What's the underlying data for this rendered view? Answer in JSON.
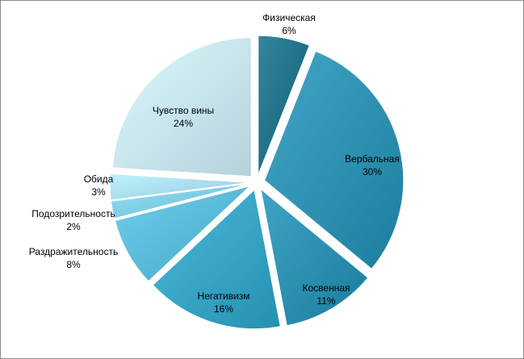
{
  "chart_data": {
    "type": "pie",
    "title": "",
    "slices": [
      {
        "name": "Физическая",
        "value": 6,
        "label": "6%",
        "color": "#1f6f86"
      },
      {
        "name": "Вербальная",
        "value": 30,
        "label": "30%",
        "color": "#2e90b0"
      },
      {
        "name": "Косвенная",
        "value": 11,
        "label": "11%",
        "color": "#2b8eae"
      },
      {
        "name": "Негативизм",
        "value": 16,
        "label": "16%",
        "color": "#36a2c4"
      },
      {
        "name": "Раздражительность",
        "value": 8,
        "label": "8%",
        "color": "#58b9d6"
      },
      {
        "name": "Подозрительность",
        "value": 2,
        "label": "2%",
        "color": "#7ccbe2"
      },
      {
        "name": "Обида",
        "value": 3,
        "label": "3%",
        "color": "#a8dceb"
      },
      {
        "name": "Чувство вины",
        "value": 24,
        "label": "24%",
        "color": "#c6e3ec"
      }
    ],
    "legend": "none",
    "data_labels": "category-and-percent"
  }
}
